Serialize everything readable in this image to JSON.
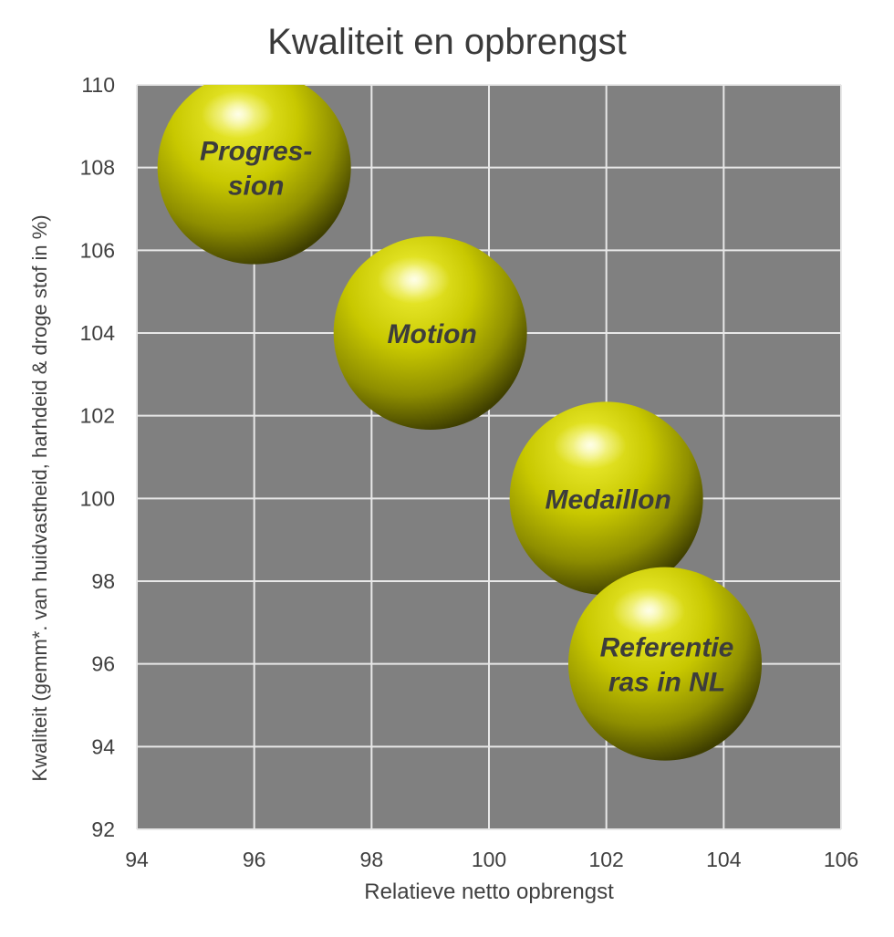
{
  "chart_data": {
    "type": "scatter",
    "title": "Kwaliteit en opbrengst",
    "xlabel": "Relatieve netto opbrengst",
    "ylabel": "Kwaliteit (gemm*. van huidvastheid, harhdeid & droge stof in %)",
    "xlim": [
      94,
      106
    ],
    "ylim": [
      92,
      110
    ],
    "xticks": [
      94,
      96,
      98,
      100,
      102,
      104,
      106
    ],
    "yticks": [
      92,
      94,
      96,
      98,
      100,
      102,
      104,
      106,
      108,
      110
    ],
    "grid": true,
    "plot_background": "#808080",
    "marker_color": "#c8c800",
    "points": [
      {
        "x": 96,
        "y": 108,
        "label_lines": [
          "Progres-",
          "sion"
        ]
      },
      {
        "x": 99,
        "y": 104,
        "label_lines": [
          "Motion"
        ]
      },
      {
        "x": 102,
        "y": 100,
        "label_lines": [
          "Medaillon"
        ]
      },
      {
        "x": 103,
        "y": 96,
        "label_lines": [
          "Referentie",
          "ras in NL"
        ]
      }
    ]
  }
}
